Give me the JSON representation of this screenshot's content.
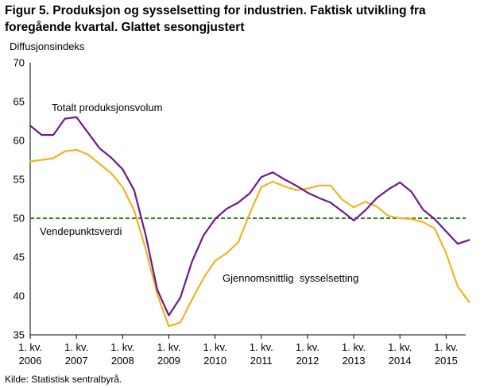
{
  "source": "Kilde: Statistisk sentralbyrå.",
  "chart_data": {
    "type": "line",
    "title": "Figur 5. Produksjon og sysselsetting for industrien. Faktisk utvikling fra foregående kvartal. Glattet sesongjustert",
    "ylabel": "Diffusjonsindeks",
    "xlabel": "",
    "ylim": [
      35,
      70
    ],
    "yticks": [
      35,
      40,
      45,
      50,
      55,
      60,
      65,
      70
    ],
    "x_ticks": [
      {
        "line1": "1. kv.",
        "line2": "2006"
      },
      {
        "line1": "1. kv.",
        "line2": "2007"
      },
      {
        "line1": "1. kv.",
        "line2": "2008"
      },
      {
        "line1": "1. kv.",
        "line2": "2009"
      },
      {
        "line1": "1. kv.",
        "line2": "2010"
      },
      {
        "line1": "1. kv.",
        "line2": "2011"
      },
      {
        "line1": "1. kv.",
        "line2": "2012"
      },
      {
        "line1": "1. kv.",
        "line2": "2013"
      },
      {
        "line1": "1. kv.",
        "line2": "2014"
      },
      {
        "line1": "1. kv.",
        "line2": "2015"
      }
    ],
    "reference_line": {
      "value": 50,
      "label": "Vendepunktsverdi",
      "color": "#3a7d1e"
    },
    "series": [
      {
        "name": "Totalt produksjonsvolum",
        "color": "#6a1b8a",
        "values": [
          61.9,
          60.7,
          60.7,
          62.8,
          63.0,
          61.0,
          59.0,
          57.8,
          56.3,
          53.6,
          47.8,
          40.8,
          37.5,
          39.8,
          44.4,
          47.8,
          49.9,
          51.2,
          52.0,
          53.2,
          55.3,
          55.9,
          55.0,
          54.2,
          53.3,
          52.6,
          52.0,
          50.9,
          49.7,
          51.0,
          52.6,
          53.7,
          54.6,
          53.4,
          51.1,
          49.9,
          48.3,
          46.7,
          47.2
        ]
      },
      {
        "name": "Gjennomsnittlig  sysselsetting",
        "color": "#f0b323",
        "values": [
          57.3,
          57.5,
          57.7,
          58.6,
          58.8,
          58.2,
          57.0,
          55.8,
          54.0,
          51.0,
          46.0,
          40.2,
          36.1,
          36.6,
          39.5,
          42.3,
          44.5,
          45.5,
          46.9,
          50.6,
          54.0,
          54.7,
          54.1,
          53.6,
          53.8,
          54.2,
          54.2,
          52.4,
          51.4,
          52.1,
          51.5,
          50.3,
          50.0,
          49.9,
          49.5,
          48.7,
          45.5,
          41.2,
          39.2
        ]
      }
    ],
    "annotations": [
      {
        "text": "Totalt produksjonsvolum",
        "series": 0
      },
      {
        "text": "Vendepunktsverdi",
        "series": "reference"
      },
      {
        "text": "Gjennomsnittlig  sysselsetting",
        "series": 1
      }
    ],
    "grid": false,
    "legend": "none"
  }
}
